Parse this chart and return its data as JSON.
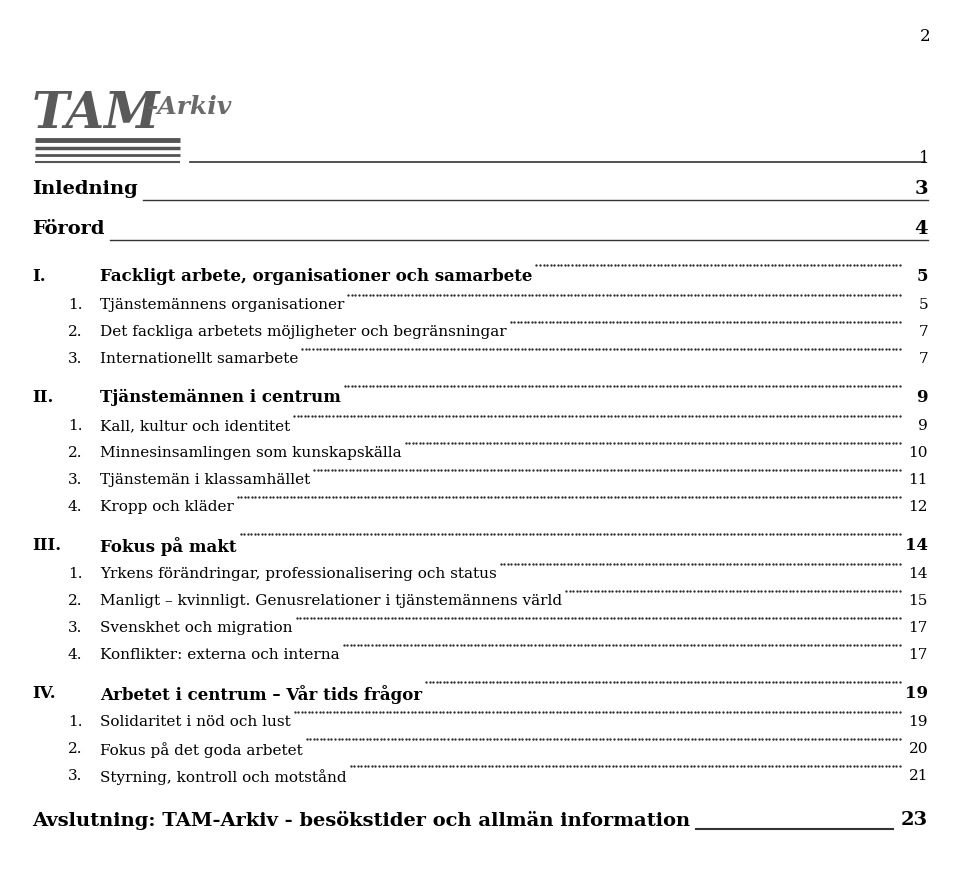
{
  "page_number": "2",
  "background_color": "#ffffff",
  "text_color": "#000000",
  "header_entries": [
    {
      "label": "Inledning",
      "page": "3"
    },
    {
      "label": "Förord",
      "page": "4"
    }
  ],
  "sections": [
    {
      "roman": "I.",
      "title": "Fackligt arbete, organisationer och samarbete",
      "page": "5",
      "subsections": [
        {
          "num": "1.",
          "text": "Tjänstemännens organisationer",
          "page": "5"
        },
        {
          "num": "2.",
          "text": "Det fackliga arbetets möjligheter och begränsningar",
          "page": "7"
        },
        {
          "num": "3.",
          "text": "Internationellt samarbete",
          "page": "7"
        }
      ]
    },
    {
      "roman": "II.",
      "title": "Tjänstemännen i centrum",
      "page": "9",
      "subsections": [
        {
          "num": "1.",
          "text": "Kall, kultur och identitet",
          "page": "9"
        },
        {
          "num": "2.",
          "text": "Minnesinsamlingen som kunskapskälla",
          "page": "10"
        },
        {
          "num": "3.",
          "text": "Tjänstemän i klassamhället",
          "page": "11"
        },
        {
          "num": "4.",
          "text": "Kropp och kläder",
          "page": "12"
        }
      ]
    },
    {
      "roman": "III.",
      "title": "Fokus på makt",
      "page": "14",
      "subsections": [
        {
          "num": "1.",
          "text": "Yrkens förändringar, professionalisering och status",
          "page": "14"
        },
        {
          "num": "2.",
          "text": "Manligt – kvinnligt. Genusrelationer i tjänstemännens värld",
          "page": "15"
        },
        {
          "num": "3.",
          "text": "Svenskhet och migration",
          "page": "17"
        },
        {
          "num": "4.",
          "text": "Konflikter: externa och interna",
          "page": "17"
        }
      ]
    },
    {
      "roman": "IV.",
      "title": "Arbetet i centrum – Vår tids frågor",
      "page": "19",
      "subsections": [
        {
          "num": "1.",
          "text": "Solidaritet i nöd och lust",
          "page": "19"
        },
        {
          "num": "2.",
          "text": "Fokus på det goda arbetet",
          "page": "20"
        },
        {
          "num": "3.",
          "text": "Styrning, kontroll och motstånd",
          "page": "21"
        }
      ]
    }
  ],
  "footer": {
    "text": "Avslutning: TAM-Arkiv - besökstider och allmän information",
    "page": "23"
  }
}
